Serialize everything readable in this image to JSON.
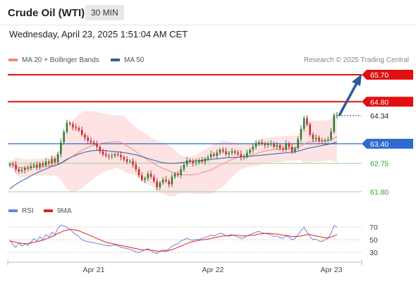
{
  "header": {
    "title": "Crude Oil (WTI)",
    "timeframe": "30 MIN"
  },
  "datetime": "Wednesday, April 23, 2025 1:51:04 AM CET",
  "legend": {
    "items": [
      {
        "label": "MA 20 + Bollinger Bands",
        "color": "#ef8a87"
      },
      {
        "label": "MA 50",
        "color": "#2f5f9f"
      }
    ],
    "credit": "Research © 2025 Trading Central"
  },
  "price_levels": {
    "resistance_2": "65.70",
    "resistance_1": "64.80",
    "last_price": "64.34",
    "pivot": "63.40",
    "support_1": "62.75",
    "support_2": "61.80"
  },
  "rsi_legend": {
    "items": [
      {
        "label": "RSI",
        "color": "#6b86d6"
      },
      {
        "label": "9MA",
        "color": "#e02020"
      }
    ]
  },
  "rsi_axis": [
    "70",
    "50",
    "30"
  ],
  "x_axis": [
    "Apr 21",
    "Apr 22",
    "Apr 23"
  ],
  "colors": {
    "resistance": "#e01010",
    "pivot": "#2f6ad0",
    "support": "#2aa52a",
    "candle_up": "#2e7d32",
    "candle_down": "#c62828",
    "arrow": "#2a5c9a",
    "bb_fill": "#fde3e3"
  },
  "chart_data": {
    "type": "candlestick",
    "ylim": [
      61.6,
      65.9
    ],
    "levels": [
      65.7,
      64.8,
      64.34,
      63.4,
      62.75,
      61.8
    ],
    "close": [
      62.72,
      62.7,
      62.55,
      62.48,
      62.52,
      62.6,
      62.58,
      62.65,
      62.7,
      62.62,
      62.74,
      62.68,
      62.8,
      62.75,
      62.9,
      62.78,
      63.05,
      63.45,
      63.8,
      64.1,
      64.05,
      63.95,
      63.92,
      63.86,
      63.7,
      63.6,
      63.5,
      63.45,
      63.4,
      63.3,
      63.15,
      63.05,
      63.0,
      62.98,
      63.0,
      63.05,
      63.02,
      62.95,
      62.88,
      62.8,
      62.82,
      62.7,
      62.55,
      62.35,
      62.2,
      62.25,
      62.4,
      62.3,
      62.15,
      61.95,
      62.1,
      62.2,
      62.15,
      62.05,
      62.3,
      62.4,
      62.35,
      62.55,
      62.7,
      62.85,
      62.8,
      62.75,
      62.78,
      62.85,
      62.8,
      62.9,
      62.95,
      63.05,
      63.0,
      63.1,
      63.2,
      63.15,
      63.05,
      63.1,
      63.15,
      63.1,
      63.05,
      62.95,
      62.98,
      63.1,
      63.2,
      63.3,
      63.4,
      63.45,
      63.4,
      63.35,
      63.38,
      63.4,
      63.3,
      63.35,
      63.25,
      63.2,
      63.4,
      63.3,
      63.15,
      63.25,
      63.55,
      63.9,
      64.25,
      64.05,
      63.7,
      63.55,
      63.6,
      63.5,
      63.48,
      63.52,
      63.55,
      63.8,
      64.35,
      64.35
    ],
    "ma50": [
      61.9,
      61.98,
      62.05,
      62.11,
      62.17,
      62.22,
      62.27,
      62.33,
      62.38,
      62.43,
      62.48,
      62.52,
      62.56,
      62.6,
      62.64,
      62.67,
      62.71,
      62.76,
      62.82,
      62.88,
      62.93,
      62.98,
      63.02,
      63.06,
      63.09,
      63.12,
      63.14,
      63.16,
      63.17,
      63.18,
      63.18,
      63.18,
      63.17,
      63.16,
      63.15,
      63.14,
      63.13,
      63.12,
      63.1,
      63.09,
      63.07,
      63.05,
      63.03,
      63.0,
      62.97,
      62.94,
      62.91,
      62.88,
      62.85,
      62.82,
      62.79,
      62.77,
      62.76,
      62.75,
      62.75,
      62.75,
      62.76,
      62.77,
      62.78,
      62.79,
      62.81,
      62.82,
      62.83,
      62.84,
      62.85,
      62.86,
      62.87,
      62.88,
      62.89,
      62.9,
      62.91,
      62.92,
      62.93,
      62.94,
      62.94,
      62.95,
      62.95,
      62.96,
      62.96,
      62.97,
      62.98,
      62.99,
      63.0,
      63.01,
      63.02,
      63.03,
      63.04,
      63.05,
      63.06,
      63.07,
      63.08,
      63.09,
      63.1,
      63.11,
      63.12,
      63.13,
      63.15,
      63.18,
      63.21,
      63.24,
      63.26,
      63.28,
      63.3,
      63.32,
      63.34,
      63.36,
      63.38,
      63.4,
      63.43,
      63.45
    ],
    "rsi": [
      50,
      42,
      38,
      45,
      40,
      43,
      41,
      46,
      52,
      48,
      55,
      50,
      58,
      54,
      62,
      58,
      68,
      73,
      72,
      69,
      67,
      62,
      58,
      55,
      50,
      48,
      47,
      46,
      45,
      44,
      43,
      42,
      41,
      40,
      41,
      42,
      40,
      38,
      37,
      36,
      35,
      33,
      31,
      30,
      32,
      34,
      36,
      33,
      30,
      28,
      32,
      34,
      33,
      35,
      40,
      42,
      44,
      48,
      50,
      52,
      50,
      49,
      51,
      50,
      52,
      53,
      55,
      57,
      56,
      58,
      60,
      59,
      56,
      57,
      58,
      56,
      54,
      52,
      53,
      56,
      58,
      60,
      62,
      63,
      61,
      60,
      59,
      58,
      55,
      56,
      53,
      52,
      56,
      54,
      50,
      52,
      58,
      64,
      70,
      62,
      55,
      50,
      51,
      48,
      47,
      50,
      52,
      60,
      72,
      70
    ],
    "rsi_ma": [
      48,
      47,
      46,
      45,
      44,
      44,
      44,
      45,
      46,
      47,
      48,
      49,
      51,
      53,
      55,
      57,
      60,
      62,
      64,
      65,
      66,
      66,
      65,
      64,
      62,
      60,
      58,
      56,
      54,
      52,
      50,
      48,
      46,
      45,
      44,
      43,
      42,
      41,
      40,
      39,
      38,
      37,
      36,
      35,
      34,
      34,
      34,
      33,
      33,
      32,
      32,
      32,
      32,
      33,
      34,
      36,
      38,
      40,
      42,
      44,
      46,
      47,
      48,
      49,
      50,
      50,
      51,
      52,
      53,
      54,
      55,
      56,
      56,
      56,
      57,
      57,
      57,
      56,
      56,
      56,
      57,
      57,
      58,
      59,
      59,
      60,
      60,
      60,
      59,
      59,
      58,
      57,
      57,
      56,
      55,
      55,
      55,
      56,
      57,
      58,
      58,
      57,
      56,
      55,
      54,
      53,
      53,
      54,
      56,
      58
    ]
  }
}
